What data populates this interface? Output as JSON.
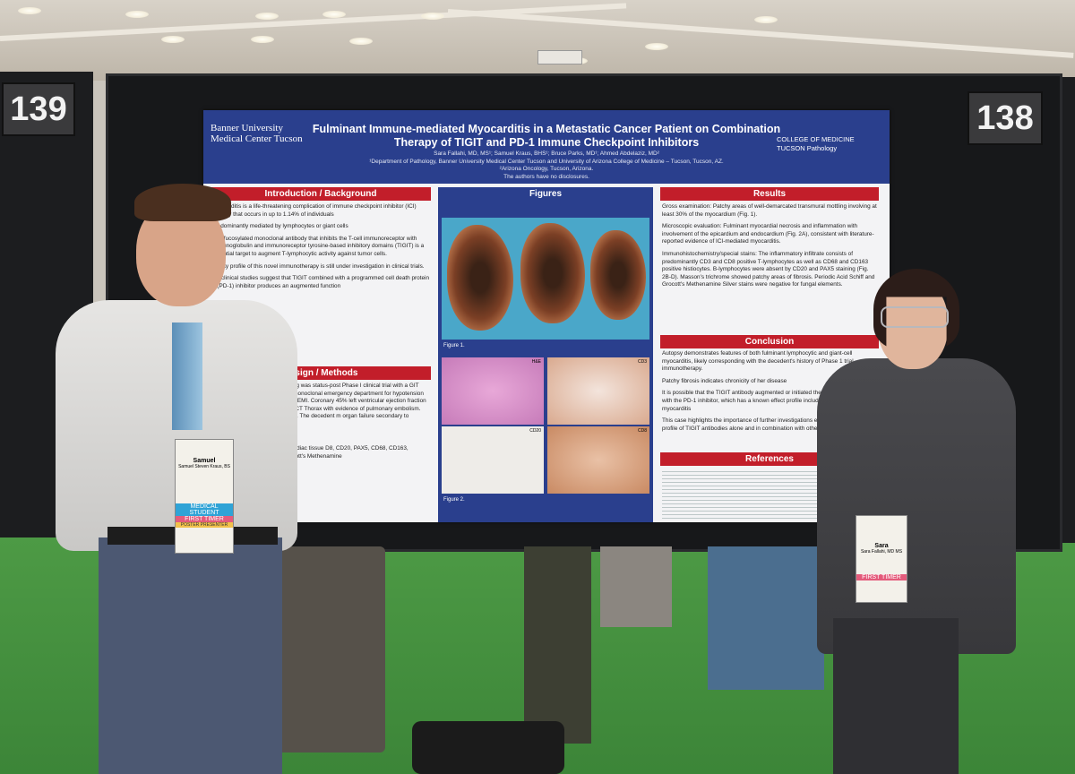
{
  "booths": {
    "left": "139",
    "right": "138"
  },
  "poster": {
    "institution": "Banner University Medical Center Tucson",
    "dept_logo": "COLLEGE OF MEDICINE TUCSON Pathology",
    "title": "Fulminant Immune-mediated Myocarditis in a Metastatic Cancer Patient on Combination Therapy of TIGIT and PD-1 Immune Checkpoint Inhibitors",
    "authors": "Sara Fallahi, MD, MS¹; Samuel Kraus, BHS¹; Bruce Parks, MD¹; Ahmed Abdelaziz, MD²",
    "affiliation1": "¹Department of Pathology, Banner University Medical Center Tucson and University of Arizona College of Medicine – Tucson, Tucson, AZ.",
    "affiliation2": "²Arizona Oncology, Tucson, Arizona.",
    "disclosure": "The authors have no disclosures.",
    "sections": {
      "intro": "Introduction / Background",
      "design": "Design / Methods",
      "figures": "Figures",
      "results": "Results",
      "conclusion": "Conclusion",
      "references": "References"
    },
    "figure_labels": {
      "fig1": "Figure 1.",
      "fig2": "Figure 2."
    },
    "intro_text": [
      "Myocarditis is a life-threatening complication of immune checkpoint inhibitor (ICI) therapy that occurs in up to 1.14% of individuals",
      "predominantly mediated by lymphocytes or giant cells",
      "non-fucosylated monoclonal antibody that inhibits the T-cell immunoreceptor with immunoglobulin and immunoreceptor tyrosine-based inhibitory domains (TIGIT) is a potential target to augment T-lymphocytic activity against tumor cells.",
      "Safety profile of this novel immunotherapy is still under investigation in clinical trials.",
      "Preclinical studies suggest that TIGIT combined with a programmed cell death protein 1 (PD-1) inhibitor produces an augmented function"
    ],
    "design_text": [
      "with metastatic non-small cell lung was status-post Phase I clinical trial with a GIT antibody combined with a PD-1 monoclonal emergency department for hypotension and ectrocardiogram revealed STEMI. Coronary 45% left ventricular ejection fraction with no coronary artery disease. CT Thorax with evidence of pulmonary embolism. Labs ted troponin > 22973 ng/mL. The decedent m organ failure secondary to cardiogenic",
      "without restrictions.",
      "was performed on sections of cardiac tissue D8, CD20, PAX5, CD68, CD163, Masson's Schiff (PAS), and Grocott's Methenamine"
    ],
    "results_text": [
      "Gross examination: Patchy areas of well-demarcated transmural mottling involving at least 30% of the myocardium (Fig. 1).",
      "Microscopic evaluation: Fulminant myocardial necrosis and inflammation with involvement of the epicardium and endocardium (Fig. 2A), consistent with literature-reported evidence of ICI-mediated myocarditis.",
      "Immunohistochemistry/special stains: The inflammatory infiltrate consists of predominantly CD3 and CD8 positive T-lymphocytes as well as CD68 and CD163 positive histiocytes. B-lymphocytes were absent by CD20 and PAX5 staining (Fig. 2B-D). Masson's trichrome showed patchy areas of fibrosis. Periodic Acid Schiff and Grocott's Methenamine Silver stains were negative for fungal elements."
    ],
    "conclusion_text": [
      "Autopsy demonstrates features of both fulminant lymphocytic and giant-cell myocarditis, likely corresponding with the decedent's history of Phase 1 trial immunotherapy.",
      "Patchy fibrosis indicates chronicity of her disease",
      "It is possible that the TIGIT antibody augmented or initiated the effect in combination with the PD-1 inhibitor, which has a known effect profile including immune-mediated myocarditis",
      "This case highlights the importance of further investigations evaluating the safety profile of TIGIT antibodies alone and in combination with other immunotherapies."
    ],
    "micro_labels": [
      "H&E",
      "CD3",
      "CD20",
      "CD8"
    ]
  },
  "badges": {
    "left": {
      "name": "Samuel",
      "fullname": "Samuel Steven Kraus, BS",
      "role1": "MEDICAL STUDENT",
      "role2": "FIRST TIMER",
      "role3": "POSTER PRESENTER"
    },
    "right": {
      "name": "Sara",
      "fullname": "Sara Fallahi, MD MS",
      "role2": "FIRST TIMER"
    }
  },
  "colors": {
    "poster_blue": "#2a3f8d",
    "section_red": "#c21e2a",
    "carpet": "#4d9a45",
    "lanyard": "#f2c230"
  }
}
